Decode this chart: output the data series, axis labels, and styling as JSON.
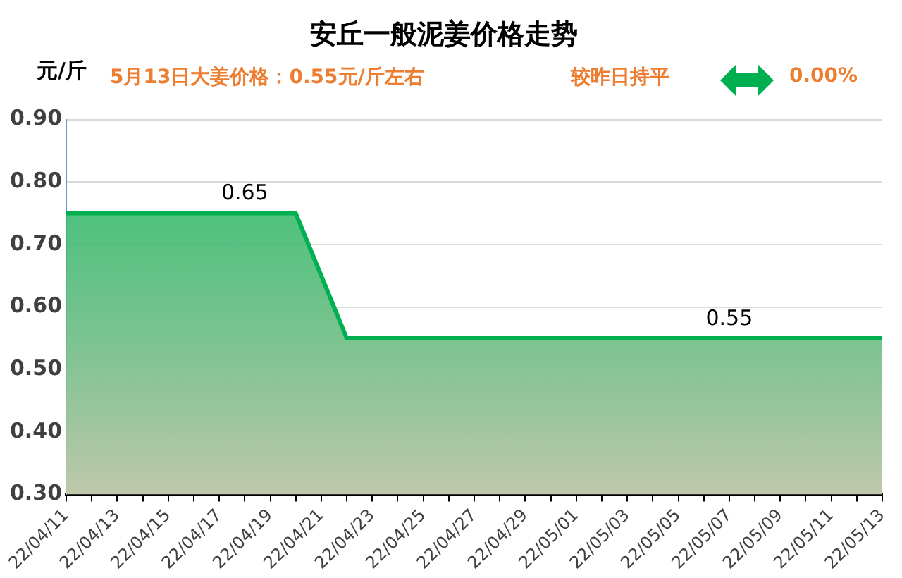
{
  "chart_data": {
    "type": "area",
    "title": "安丘一般泥姜价格走势",
    "subtitle": "5月13日大姜价格：0.55元/斤左右",
    "ylabel": "元/斤",
    "categories": [
      "22/04/11",
      null,
      "22/04/13",
      null,
      "22/04/15",
      null,
      "22/04/17",
      null,
      "22/04/19",
      null,
      "22/04/21",
      null,
      "22/04/23",
      null,
      "22/04/25",
      null,
      "22/04/27",
      null,
      "22/04/29",
      null,
      "22/05/01",
      null,
      "22/05/03",
      null,
      "22/05/05",
      null,
      "22/05/07",
      null,
      "22/05/09",
      null,
      "22/05/11",
      null,
      "22/05/13"
    ],
    "series": [
      {
        "color": "#00b050",
        "values": [
          0.75,
          0.75,
          0.75,
          0.75,
          0.75,
          0.75,
          0.75,
          0.75,
          0.75,
          0.75,
          0.65,
          0.55,
          0.55,
          0.55,
          0.55,
          0.55,
          0.55,
          0.55,
          0.55,
          0.55,
          0.55,
          0.55,
          0.55,
          0.55,
          0.55,
          0.55,
          0.55,
          0.55,
          0.55,
          0.55,
          0.55,
          0.55,
          0.55
        ],
        "value_labels": [
          null,
          null,
          null,
          null,
          null,
          null,
          null,
          null,
          null,
          null,
          null,
          null,
          null,
          null,
          null,
          null,
          null,
          null,
          null,
          null,
          null,
          null,
          null,
          null,
          null,
          null,
          "0.55",
          null,
          null,
          null,
          null,
          null,
          null
        ]
      }
    ],
    "annotations": [
      "较昨日持平",
      "0.00%",
      {
        "text": "0.65",
        "y": 0.75
      }
    ],
    "ylim": [
      0.3,
      0.9
    ],
    "yticks": [
      {
        "value": 0.3,
        "label": "0.30"
      },
      {
        "value": 0.4,
        "label": "0.40"
      },
      {
        "value": 0.5,
        "label": "0.50"
      },
      {
        "value": 0.6,
        "label": "0.60"
      },
      {
        "value": 0.7,
        "label": "0.70"
      },
      {
        "value": 0.8,
        "label": "0.80"
      },
      {
        "value": 0.9,
        "label": "0.90"
      }
    ],
    "grid": "y",
    "legend": false,
    "marker": "none",
    "line_style": "solid"
  }
}
